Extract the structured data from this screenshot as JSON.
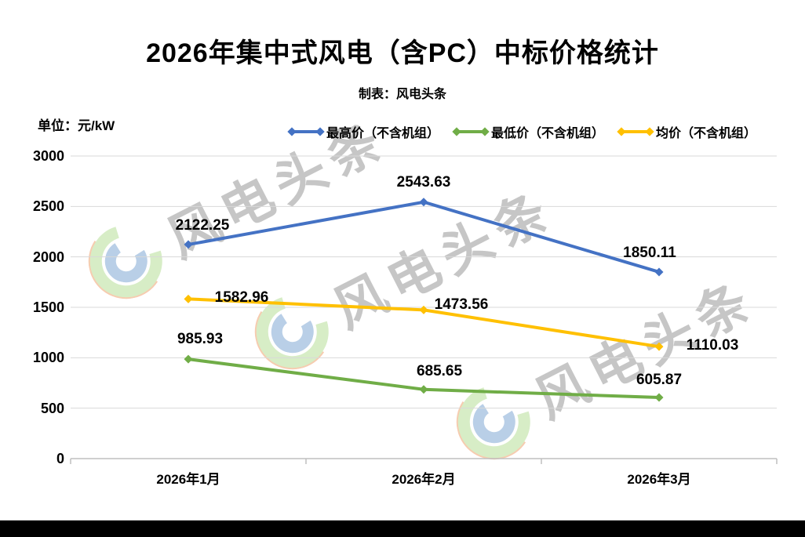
{
  "header": {
    "title": "2026年集中式风电（含PC）中标价格统计",
    "subtitle": "制表：风电头条"
  },
  "axes": {
    "unit_label": "单位：元/kW"
  },
  "watermark": {
    "text": "风电头条"
  },
  "colors": {
    "max_series": "#4472C4",
    "min_series": "#70AD47",
    "avg_series": "#FFC000",
    "gridline": "#d9d9d9",
    "axis_line": "#bfbfbf",
    "watermark_text": "#c6c6c6"
  },
  "chart_data": {
    "type": "line",
    "title": "2026年集中式风电（含PC）中标价格统计",
    "subtitle": "制表：风电头条",
    "ylabel": "元/kW",
    "categories": [
      "2026年1月",
      "2026年2月",
      "2026年3月"
    ],
    "series": [
      {
        "key": "max-price",
        "name": "最高价（不含机组）",
        "color": "#4472C4",
        "values": [
          2122.25,
          2543.63,
          1850.11
        ],
        "labels": [
          "2122.25",
          "2543.63",
          "1850.11"
        ],
        "label_offsets": [
          [
            18,
            -24
          ],
          [
            0,
            -25
          ],
          [
            -12,
            -24
          ]
        ]
      },
      {
        "key": "min-price",
        "name": "最低价（不含机组）",
        "color": "#70AD47",
        "values": [
          985.93,
          685.65,
          605.87
        ],
        "labels": [
          "985.93",
          "685.65",
          "605.87"
        ],
        "label_offsets": [
          [
            15,
            -25
          ],
          [
            20,
            -23
          ],
          [
            0,
            -22
          ]
        ]
      },
      {
        "key": "avg-price",
        "name": "均价（不含机组）",
        "color": "#FFC000",
        "values": [
          1582.96,
          1473.56,
          1110.03
        ],
        "labels": [
          "1582.96",
          "1473.56",
          "1110.03"
        ],
        "label_offsets": [
          [
            68,
            -1
          ],
          [
            48,
            -6
          ],
          [
            68,
            -1
          ]
        ]
      }
    ],
    "ylim": [
      0,
      3000
    ],
    "yticks": [
      0,
      500,
      1000,
      1500,
      2000,
      2500,
      3000
    ],
    "grid": true,
    "legend_position": "top"
  }
}
